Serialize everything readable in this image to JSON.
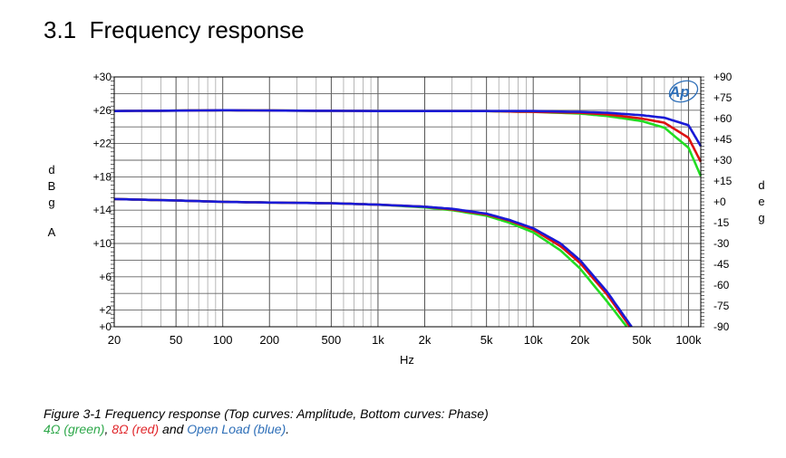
{
  "section": {
    "number": "3.1",
    "title": "Frequency response"
  },
  "chart_data": {
    "type": "line",
    "xlabel": "Hz",
    "xscale": "log",
    "xlim": [
      20,
      120000
    ],
    "xticks": [
      {
        "value": 20,
        "label": "20"
      },
      {
        "value": 50,
        "label": "50"
      },
      {
        "value": 100,
        "label": "100"
      },
      {
        "value": 200,
        "label": "200"
      },
      {
        "value": 500,
        "label": "500"
      },
      {
        "value": 1000,
        "label": "1k"
      },
      {
        "value": 2000,
        "label": "2k"
      },
      {
        "value": 5000,
        "label": "5k"
      },
      {
        "value": 10000,
        "label": "10k"
      },
      {
        "value": 20000,
        "label": "20k"
      },
      {
        "value": 50000,
        "label": "50k"
      },
      {
        "value": 100000,
        "label": "100k"
      }
    ],
    "ylabel_left": "dBgA",
    "ylim_left": [
      0,
      30
    ],
    "yticks_left": [
      {
        "value": 0,
        "label": "+0"
      },
      {
        "value": 2,
        "label": "+2"
      },
      {
        "value": 6,
        "label": "+6"
      },
      {
        "value": 10,
        "label": "+10"
      },
      {
        "value": 14,
        "label": "+14"
      },
      {
        "value": 18,
        "label": "+18"
      },
      {
        "value": 22,
        "label": "+22"
      },
      {
        "value": 26,
        "label": "+26"
      },
      {
        "value": 30,
        "label": "+30"
      }
    ],
    "ylabel_right": "deg",
    "ylim_right": [
      -90,
      90
    ],
    "yticks_right": [
      {
        "value": 90,
        "label": "+90"
      },
      {
        "value": 75,
        "label": "+75"
      },
      {
        "value": 60,
        "label": "+60"
      },
      {
        "value": 45,
        "label": "+45"
      },
      {
        "value": 30,
        "label": "+30"
      },
      {
        "value": 15,
        "label": "+15"
      },
      {
        "value": 0,
        "label": "+0"
      },
      {
        "value": -15,
        "label": "-15"
      },
      {
        "value": -30,
        "label": "-30"
      },
      {
        "value": -45,
        "label": "-45"
      },
      {
        "value": -60,
        "label": "-60"
      },
      {
        "value": -75,
        "label": "-75"
      },
      {
        "value": -90,
        "label": "-90"
      }
    ],
    "grid": true,
    "logo_text": "Ap",
    "series": [
      {
        "name": "4Ω",
        "color": "#22dd22",
        "axis": "left",
        "x": [
          20,
          100,
          1000,
          5000,
          10000,
          20000,
          30000,
          50000,
          70000,
          100000,
          120000
        ],
        "y": [
          25.9,
          26.0,
          25.9,
          25.9,
          25.8,
          25.6,
          25.3,
          24.7,
          23.9,
          21.5,
          18.1
        ]
      },
      {
        "name": "8Ω",
        "color": "#dd1111",
        "axis": "left",
        "x": [
          20,
          100,
          1000,
          5000,
          10000,
          20000,
          30000,
          50000,
          70000,
          100000,
          120000
        ],
        "y": [
          25.9,
          26.0,
          25.9,
          25.9,
          25.8,
          25.7,
          25.5,
          25.0,
          24.5,
          22.7,
          19.8
        ]
      },
      {
        "name": "Open Load",
        "color": "#1a1ad6",
        "axis": "left",
        "x": [
          20,
          100,
          1000,
          5000,
          10000,
          20000,
          30000,
          50000,
          70000,
          100000,
          120000
        ],
        "y": [
          25.9,
          26.0,
          25.9,
          25.9,
          25.9,
          25.8,
          25.7,
          25.4,
          25.1,
          24.2,
          21.7
        ]
      },
      {
        "name": "4Ω phase",
        "color": "#22dd22",
        "axis": "right",
        "x": [
          20,
          50,
          100,
          200,
          500,
          1000,
          2000,
          3000,
          5000,
          7000,
          10000,
          15000,
          20000,
          30000,
          40000
        ],
        "y": [
          2,
          1,
          0,
          -0.5,
          -1,
          -2,
          -4,
          -6,
          -10,
          -15,
          -22,
          -35,
          -48,
          -72,
          -90
        ]
      },
      {
        "name": "8Ω phase",
        "color": "#dd1111",
        "axis": "right",
        "x": [
          20,
          50,
          100,
          200,
          500,
          1000,
          2000,
          3000,
          5000,
          7000,
          10000,
          15000,
          20000,
          30000,
          42000
        ],
        "y": [
          2,
          1,
          0,
          -0.5,
          -1,
          -2,
          -3.5,
          -5.5,
          -9,
          -13.5,
          -20,
          -32,
          -44,
          -67,
          -90
        ]
      },
      {
        "name": "Open Load phase",
        "color": "#1a1ad6",
        "axis": "right",
        "x": [
          20,
          50,
          100,
          200,
          500,
          1000,
          2000,
          3000,
          5000,
          7000,
          10000,
          15000,
          20000,
          30000,
          43000
        ],
        "y": [
          2,
          1,
          0,
          -0.5,
          -1,
          -2,
          -3.5,
          -5,
          -8.5,
          -13,
          -19,
          -30,
          -42,
          -65,
          -90
        ]
      }
    ]
  },
  "caption": {
    "line1": "Figure 3-1  Frequency response (Top curves: Amplitude, Bottom curves: Phase)",
    "green": "4Ω (green)",
    "sep1": ", ",
    "red": "8Ω (red)",
    "sep2": " and ",
    "blue": "Open Load (blue)",
    "end": "."
  }
}
